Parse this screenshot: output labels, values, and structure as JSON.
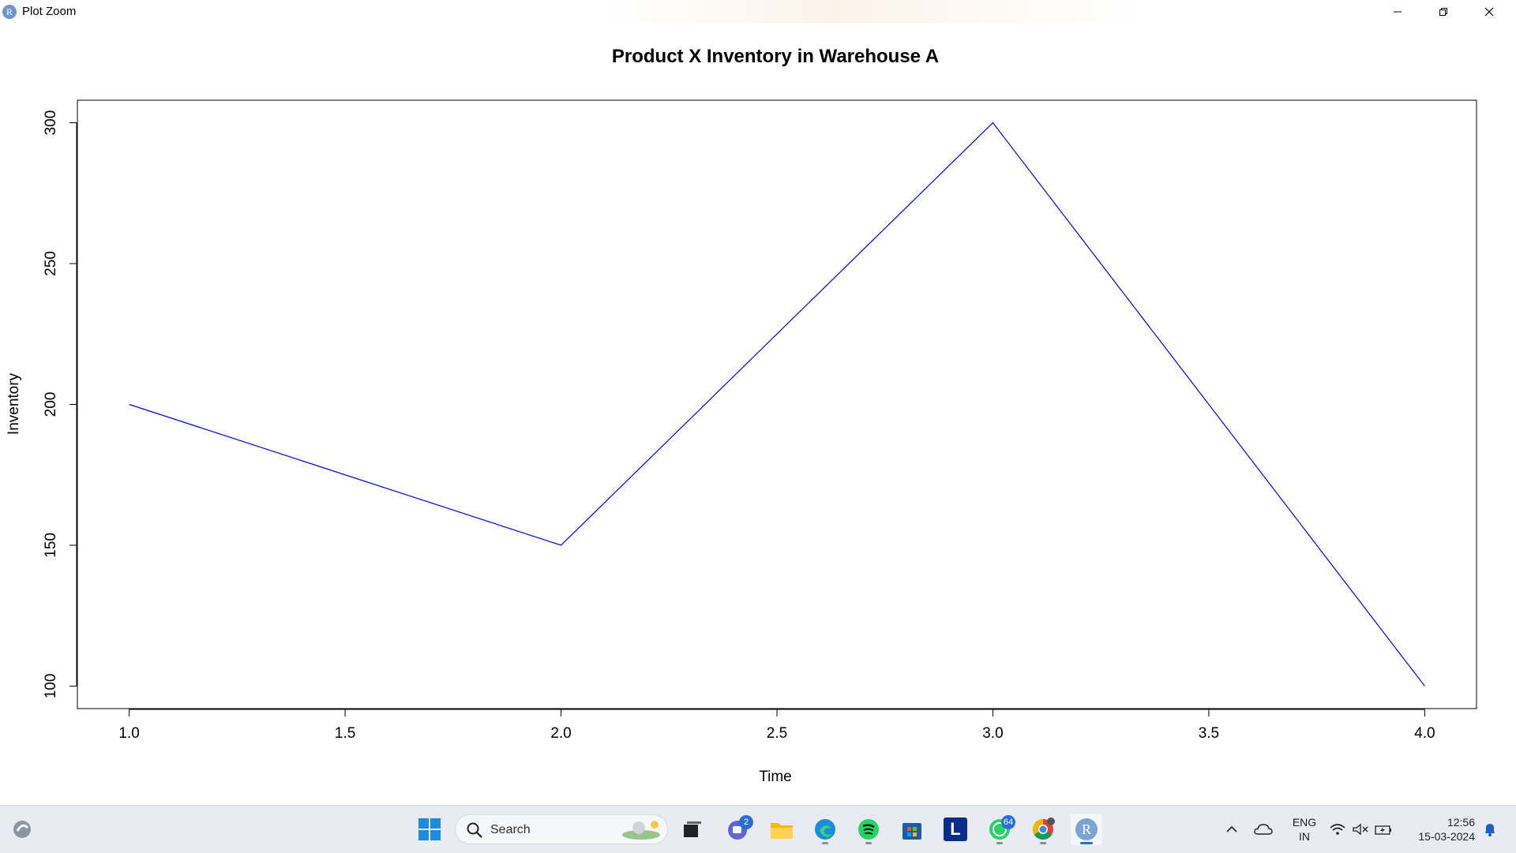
{
  "window": {
    "title": "Plot Zoom",
    "app_icon_letter": "R"
  },
  "chart_data": {
    "type": "line",
    "title": "Product X Inventory in Warehouse A",
    "xlabel": "Time",
    "ylabel": "Inventory",
    "x": [
      1,
      2,
      3,
      4
    ],
    "series": [
      {
        "name": "Inventory",
        "values": [
          200,
          150,
          300,
          100
        ],
        "color": "#0000ff"
      }
    ],
    "xlim": [
      0.88,
      4.12
    ],
    "ylim": [
      92,
      308
    ],
    "xticks": [
      1.0,
      1.5,
      2.0,
      2.5,
      3.0,
      3.5,
      4.0
    ],
    "xtick_labels": [
      "1.0",
      "1.5",
      "2.0",
      "2.5",
      "3.0",
      "3.5",
      "4.0"
    ],
    "yticks": [
      100,
      150,
      200,
      250,
      300
    ],
    "ytick_labels": [
      "100",
      "150",
      "200",
      "250",
      "300"
    ],
    "grid": false
  },
  "taskbar": {
    "search_placeholder": "Search",
    "chat_badge": "2",
    "whatsapp_badge": "64",
    "store_letter": "L",
    "r_letter": "R",
    "lang_line1": "ENG",
    "lang_line2": "IN",
    "time": "12:56",
    "date": "15-03-2024"
  }
}
